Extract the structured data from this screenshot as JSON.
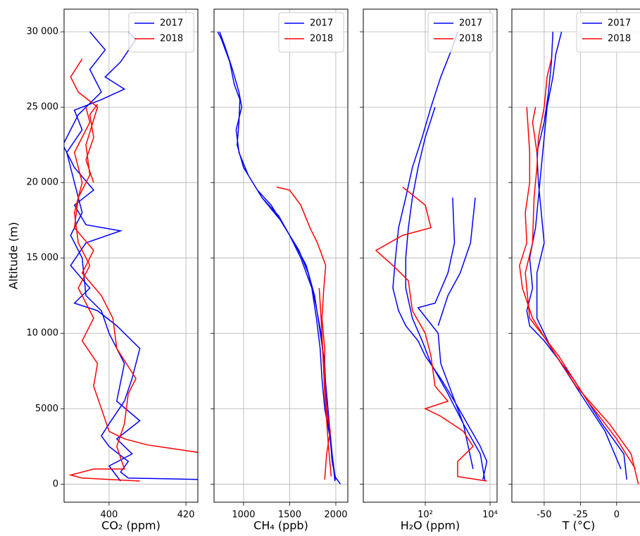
{
  "chart_data": [
    {
      "type": "line",
      "xlabel": "CO₂ (ppm)",
      "ylabel": "Altitude (m)",
      "grid": true,
      "legend": "upper right",
      "xlim": [
        388.3,
        423.1
      ],
      "xticks": [
        400,
        420
      ],
      "ylim": [
        -1200,
        31500
      ],
      "yticks": [
        0,
        5000,
        {
          "value": 10000,
          "label": "10 000"
        },
        {
          "value": 15000,
          "label": "15 000"
        },
        {
          "value": 20000,
          "label": "20 000"
        },
        {
          "value": 25000,
          "label": "25 000"
        },
        {
          "value": 30000,
          "label": "30 000"
        }
      ],
      "series": [
        {
          "name": "2017",
          "color": "#0000ff",
          "x": [
            425,
            405,
            403,
            405,
            400,
            398,
            400,
            404,
            406,
            408,
            402,
            397,
            391,
            395,
            390,
            394,
            403,
            394,
            391,
            396,
            391,
            388,
            392,
            398,
            395,
            399,
            395,
            null,
            403,
            400,
            406,
            402,
            408,
            402,
            404,
            400,
            398,
            394,
            393,
            390,
            393,
            391,
            389,
            393,
            391,
            398,
            404,
            399,
            403,
            407,
            405
          ],
          "values": [
            300,
            400,
            800,
            1500,
            2500,
            3200,
            4000,
            5500,
            7000,
            9000,
            10500,
            11500,
            12000,
            13000,
            14500,
            16000,
            16800,
            17200,
            18500,
            19500,
            21000,
            22500,
            24500,
            26000,
            27500,
            28800,
            30000,
            null,
            200,
            1200,
            2000,
            3000,
            4200,
            5500,
            8000,
            10000,
            11500,
            12500,
            15000,
            16500,
            18000,
            20000,
            22000,
            23500,
            24800,
            25500,
            26200,
            27000,
            28000,
            29500,
            30000
          ]
        },
        {
          "name": "2018",
          "color": "#ff0000",
          "x": [
            408,
            393,
            390,
            396,
            404,
            402,
            404,
            405,
            407,
            402,
            401,
            398,
            393,
            396,
            391,
            392,
            395,
            394,
            397,
            392,
            390,
            393,
            null,
            426,
            410,
            404,
            400,
            398,
            396,
            397,
            393,
            396,
            392,
            395,
            392,
            391,
            393,
            391,
            395,
            394,
            null,
            396,
            394,
            396,
            395,
            397
          ],
          "values": [
            200,
            400,
            600,
            1000,
            1000,
            2500,
            4000,
            6000,
            7000,
            9000,
            11000,
            12500,
            14000,
            15500,
            17000,
            19000,
            20500,
            22500,
            25000,
            26000,
            27000,
            28200,
            null,
            2000,
            2600,
            3000,
            3500,
            5000,
            6500,
            8000,
            9500,
            11000,
            13000,
            14500,
            16000,
            18000,
            20000,
            22000,
            24000,
            25000,
            null,
            20000,
            21500,
            23000,
            24500,
            25200
          ]
        }
      ]
    },
    {
      "type": "line",
      "xlabel": "CH₄ (ppb)",
      "grid": true,
      "legend": "upper right",
      "xlim": [
        680,
        2130
      ],
      "xticks": [
        1000,
        1500,
        2000
      ],
      "ylim": [
        -1200,
        31500
      ],
      "yticks": [
        0,
        5000,
        10000,
        15000,
        20000,
        25000,
        30000
      ],
      "series": [
        {
          "name": "2017",
          "color": "#0000ff",
          "x": [
            2050,
            1990,
            1960,
            1930,
            1900,
            1870,
            1840,
            1780,
            1700,
            1600,
            1450,
            1300,
            1150,
            1000,
            930,
            950,
            960,
            900,
            850,
            760,
            720,
            null,
            2000,
            1960,
            1940,
            1880,
            1850,
            1830,
            1790,
            1740,
            1620,
            1500,
            1380,
            1200,
            null,
            1990,
            1950,
            1900,
            1880,
            1820,
            1770,
            1680,
            1550,
            1400,
            1200,
            1050,
            950,
            920,
            980,
            950,
            880,
            800,
            740
          ],
          "values": [
            0,
            500,
            2000,
            4000,
            6000,
            8000,
            10000,
            12000,
            14000,
            15500,
            17000,
            18500,
            19500,
            21000,
            22500,
            24000,
            25500,
            26500,
            28000,
            29500,
            30000,
            null,
            300,
            1500,
            3000,
            5000,
            7000,
            9000,
            11000,
            13000,
            15000,
            16500,
            17800,
            19000,
            null,
            200,
            2500,
            5000,
            8000,
            10500,
            12500,
            14500,
            16000,
            17500,
            19000,
            20500,
            22000,
            23500,
            25000,
            26000,
            27500,
            29000,
            30000
          ]
        },
        {
          "name": "2018",
          "color": "#ff0000",
          "x": [
            1880,
            1900,
            1940,
            1900,
            1880,
            1880,
            1850,
            1870,
            1890,
            1800,
            1720,
            1620,
            1500,
            1360,
            null,
            1950,
            1920,
            1880,
            1850,
            1820
          ],
          "values": [
            300,
            2000,
            3500,
            5000,
            7000,
            9000,
            11000,
            13000,
            14500,
            16000,
            17000,
            18500,
            19500,
            19700,
            null,
            500,
            2500,
            6000,
            10000,
            13000
          ]
        }
      ]
    },
    {
      "type": "line",
      "xlabel": "H₂O (ppm)",
      "grid": true,
      "legend": "upper right",
      "xscale": "log",
      "xlim": [
        1.22,
        16500
      ],
      "xticks": [
        {
          "value": 100,
          "label": "10²"
        },
        {
          "value": 10000,
          "label": "10⁴"
        }
      ],
      "ylim": [
        -1200,
        31500
      ],
      "yticks": [
        0,
        5000,
        10000,
        15000,
        20000,
        25000,
        30000
      ],
      "series": [
        {
          "name": "2017",
          "color": "#0000ff",
          "x": [
            6000,
            8000,
            5000,
            2000,
            800,
            300,
            100,
            60,
            25,
            15,
            10,
            12,
            15,
            25,
            40,
            80,
            150,
            300,
            700,
            1000,
            null,
            7000,
            5000,
            1500,
            500,
            150,
            80,
            40,
            25,
            25,
            30,
            40,
            60,
            100,
            200,
            null,
            3000,
            1500,
            300,
            250,
            60,
            200,
            500,
            800,
            700,
            null,
            3500,
            2500,
            1200,
            500,
            250
          ],
          "values": [
            300,
            1500,
            2500,
            4000,
            5500,
            7000,
            8500,
            9500,
            10500,
            11500,
            13000,
            15000,
            17000,
            19000,
            21000,
            23000,
            25000,
            27000,
            29000,
            30000,
            null,
            200,
            2000,
            4000,
            6000,
            8000,
            9500,
            11000,
            13000,
            15000,
            17000,
            19000,
            21000,
            23000,
            25000,
            null,
            1000,
            4000,
            8000,
            10000,
            11700,
            12000,
            14000,
            16000,
            19000,
            null,
            19000,
            16000,
            14000,
            12500,
            10500
          ]
        },
        {
          "name": "2018",
          "color": "#ff0000",
          "x": [
            8000,
            1000,
            1000,
            3000,
            1500,
            300,
            100,
            500,
            200,
            150,
            100,
            40,
            30,
            10,
            3,
            20,
            150,
            100,
            20
          ],
          "values": [
            200,
            500,
            1500,
            2500,
            3500,
            4500,
            5000,
            5500,
            6500,
            8500,
            10000,
            11500,
            13500,
            14500,
            15500,
            16500,
            17000,
            18500,
            19700
          ]
        }
      ]
    },
    {
      "type": "line",
      "xlabel": "T (°C)",
      "grid": true,
      "legend": "upper right",
      "xlim": [
        -72.3,
        20
      ],
      "xticks": [
        -50,
        -25,
        0
      ],
      "ylim": [
        -1200,
        31500
      ],
      "yticks": [
        0,
        5000,
        10000,
        15000,
        20000,
        25000,
        30000
      ],
      "series": [
        {
          "name": "2017",
          "color": "#0000ff",
          "x": [
            7,
            5,
            -10,
            -30,
            -50,
            -60,
            -62,
            -58,
            -60,
            -56,
            -54,
            -52,
            -50,
            -48,
            -44,
            -42,
            -38,
            null,
            3,
            -8,
            -25,
            -45,
            -55,
            -55,
            -50,
            -52,
            -54,
            -55,
            -50,
            -47,
            -45,
            -44
          ],
          "values": [
            300,
            2000,
            4000,
            7000,
            9500,
            10500,
            11500,
            13000,
            15000,
            17000,
            19000,
            21000,
            23000,
            25000,
            27000,
            28500,
            30000,
            null,
            1000,
            3500,
            6000,
            9000,
            11000,
            14000,
            16000,
            18000,
            20000,
            22000,
            24000,
            26000,
            28000,
            30000
          ]
        },
        {
          "name": "2018",
          "color": "#ff0000",
          "x": [
            15,
            10,
            -5,
            -28,
            -45,
            -58,
            -65,
            -67,
            -62,
            -63,
            -60,
            -60,
            -62,
            null,
            13,
            0,
            -20,
            -40,
            -60,
            -63,
            -58,
            -57,
            -55,
            -54,
            -50,
            -48,
            -45,
            null,
            -55,
            -58,
            -56
          ],
          "values": [
            0,
            2000,
            4000,
            6500,
            9000,
            11000,
            13000,
            14500,
            16000,
            18000,
            20000,
            22000,
            25000,
            null,
            1000,
            3000,
            5500,
            8500,
            11000,
            14000,
            16000,
            19000,
            21000,
            23000,
            25000,
            27000,
            28200,
            null,
            22000,
            24000,
            25000
          ]
        }
      ]
    }
  ]
}
